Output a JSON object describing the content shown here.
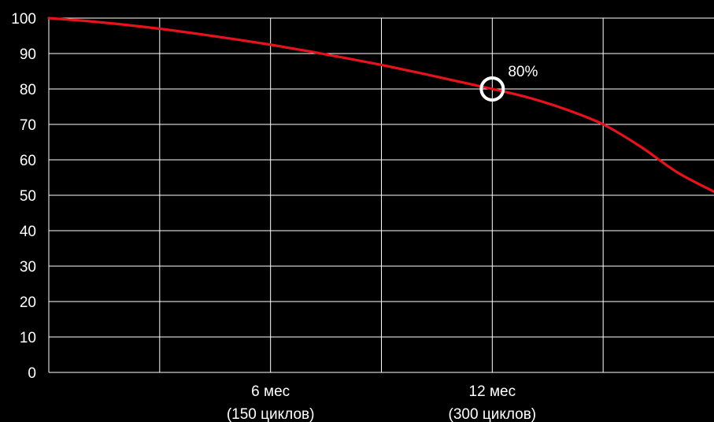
{
  "chart_data": {
    "type": "line",
    "title": "",
    "xlabel": "",
    "ylabel": "",
    "x_unit_note": "",
    "xlim": [
      0,
      18
    ],
    "ylim": [
      0,
      100
    ],
    "grid": true,
    "y_ticks": [
      "0",
      "10",
      "20",
      "30",
      "40",
      "50",
      "60",
      "70",
      "80",
      "90",
      "100"
    ],
    "x_tick_labels": [
      {
        "x": 6,
        "lines": [
          "6 мес",
          "(150 циклов)"
        ]
      },
      {
        "x": 12,
        "lines": [
          "12 мес",
          "(300 циклов)"
        ]
      }
    ],
    "x_grid_at": [
      3,
      6,
      9,
      12,
      15
    ],
    "series": [
      {
        "color": "#e8121c",
        "points": [
          [
            0,
            100
          ],
          [
            1,
            99.2
          ],
          [
            2,
            98.2
          ],
          [
            3,
            97
          ],
          [
            4,
            95.6
          ],
          [
            5,
            94.1
          ],
          [
            6,
            92.5
          ],
          [
            7,
            90.7
          ],
          [
            8,
            88.8
          ],
          [
            9,
            86.8
          ],
          [
            10,
            84.6
          ],
          [
            11,
            82.3
          ],
          [
            12,
            80
          ],
          [
            13,
            77.5
          ],
          [
            14,
            74.2
          ],
          [
            15,
            70
          ],
          [
            16,
            63.8
          ],
          [
            17,
            56.5
          ],
          [
            18,
            51
          ]
        ]
      }
    ],
    "annotations": [
      {
        "x": 12,
        "y": 80,
        "label": "80%",
        "marker": "circle"
      }
    ],
    "colors": {
      "background": "#000000",
      "grid": "#ffffff",
      "line": "#e8121c"
    }
  }
}
